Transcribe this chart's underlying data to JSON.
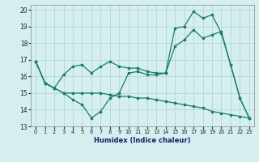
{
  "xlabel": "Humidex (Indice chaleur)",
  "background_color": "#d5efee",
  "grid_color": "#b0d8d4",
  "line_color": "#1a7a6e",
  "xlim": [
    -0.5,
    23.5
  ],
  "ylim": [
    13,
    20.3
  ],
  "xticks": [
    0,
    1,
    2,
    3,
    4,
    5,
    6,
    7,
    8,
    9,
    10,
    11,
    12,
    13,
    14,
    15,
    16,
    17,
    18,
    19,
    20,
    21,
    22,
    23
  ],
  "yticks": [
    13,
    14,
    15,
    16,
    17,
    18,
    19,
    20
  ],
  "line1_x": [
    0,
    1,
    2,
    3,
    4,
    5,
    6,
    7,
    8,
    9,
    10,
    11,
    12,
    13,
    14,
    15,
    16,
    17,
    18,
    19,
    20,
    21,
    22,
    23
  ],
  "line1_y": [
    16.9,
    15.6,
    15.3,
    16.1,
    16.6,
    16.7,
    16.2,
    16.6,
    16.9,
    16.6,
    16.5,
    16.5,
    16.3,
    16.2,
    16.2,
    18.9,
    19.0,
    19.9,
    19.5,
    19.7,
    18.6,
    16.7,
    14.7,
    13.5
  ],
  "line2_x": [
    0,
    1,
    2,
    3,
    4,
    5,
    6,
    7,
    8,
    9,
    10,
    11,
    12,
    13,
    14,
    15,
    16,
    17,
    18,
    19,
    20,
    21,
    22,
    23
  ],
  "line2_y": [
    16.9,
    15.6,
    15.3,
    15.0,
    14.6,
    14.3,
    13.5,
    13.9,
    14.7,
    15.0,
    16.2,
    16.3,
    16.1,
    16.1,
    16.2,
    17.8,
    18.2,
    18.8,
    18.3,
    18.5,
    18.7,
    16.7,
    14.7,
    13.5
  ],
  "line3_x": [
    0,
    1,
    2,
    3,
    4,
    5,
    6,
    7,
    8,
    9,
    10,
    11,
    12,
    13,
    14,
    15,
    16,
    17,
    18,
    19,
    20,
    21,
    22,
    23
  ],
  "line3_y": [
    16.9,
    15.6,
    15.3,
    15.0,
    15.0,
    15.0,
    15.0,
    15.0,
    14.9,
    14.8,
    14.8,
    14.7,
    14.7,
    14.6,
    14.5,
    14.4,
    14.3,
    14.2,
    14.1,
    13.9,
    13.8,
    13.7,
    13.6,
    13.5
  ]
}
